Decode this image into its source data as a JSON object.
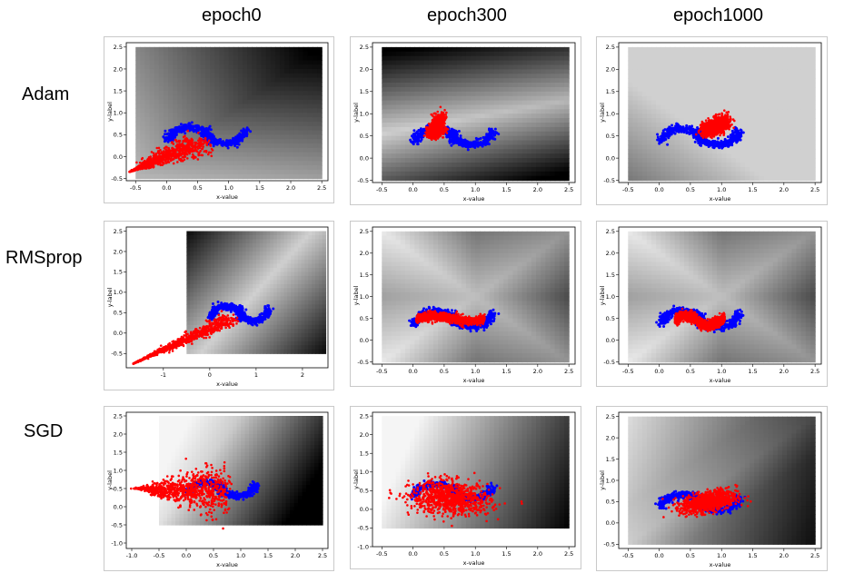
{
  "columns": [
    "epoch0",
    "epoch300",
    "epoch1000"
  ],
  "rows": [
    "Adam",
    "RMSprop",
    "SGD"
  ],
  "chart_data": [
    {
      "type": "scatter",
      "row": "Adam",
      "column": "epoch0",
      "xlabel": "x-value",
      "ylabel": "y-label",
      "xlim": [
        -0.65,
        2.6
      ],
      "ylim": [
        -0.55,
        2.6
      ],
      "xticks": [
        "-0.5",
        "0.0",
        "0.5",
        "1.0",
        "1.5",
        "2.0",
        "2.5"
      ],
      "yticks": [
        "-0.5",
        "0.0",
        "0.5",
        "1.0",
        "1.5",
        "2.0",
        "2.5"
      ],
      "background": {
        "extent": [
          -0.5,
          2.5,
          -0.5,
          2.5
        ],
        "shade": "ac_dark_tr"
      },
      "target": "moons",
      "generated": {
        "shape": "cloud",
        "cx": 0.05,
        "cy": 0.05,
        "dx": 0.45,
        "dy": 0.25,
        "spread": 0.18,
        "tail": [
          -0.6,
          -0.35
        ]
      }
    },
    {
      "type": "scatter",
      "row": "Adam",
      "column": "epoch300",
      "xlabel": "x-value",
      "ylabel": "y-label",
      "xlim": [
        -0.65,
        2.6
      ],
      "ylim": [
        -0.55,
        2.6
      ],
      "xticks": [
        "-0.5",
        "0.0",
        "0.5",
        "1.0",
        "1.5",
        "2.0",
        "2.5"
      ],
      "yticks": [
        "-0.5",
        "0.0",
        "0.5",
        "1.0",
        "1.5",
        "2.0",
        "2.5"
      ],
      "background": {
        "extent": [
          -0.5,
          2.5,
          -0.5,
          2.5
        ],
        "shade": "band_light_diag"
      },
      "target": "moons",
      "generated": {
        "shape": "spike",
        "cx": 0.3,
        "cy": 0.5,
        "dx": 0.15,
        "dy": 0.55,
        "spread": 0.05
      }
    },
    {
      "type": "scatter",
      "row": "Adam",
      "column": "epoch1000",
      "xlabel": "x-value",
      "ylabel": "y-label",
      "xlim": [
        -0.65,
        2.6
      ],
      "ylim": [
        -0.55,
        2.6
      ],
      "xticks": [
        "-0.5",
        "0.0",
        "0.5",
        "1.0",
        "1.5",
        "2.0",
        "2.5"
      ],
      "yticks": [
        "-0.5",
        "0.0",
        "0.5",
        "1.0",
        "1.5",
        "2.0",
        "2.5"
      ],
      "background": {
        "extent": [
          -0.5,
          2.5,
          -0.5,
          2.5
        ],
        "shade": "light_dark_bl"
      },
      "target": "moons",
      "generated": {
        "shape": "spike",
        "cx": 0.75,
        "cy": 0.6,
        "dx": 0.3,
        "dy": 0.35,
        "spread": 0.07
      }
    },
    {
      "type": "scatter",
      "row": "RMSprop",
      "column": "epoch0",
      "xlabel": "x-value",
      "ylabel": "y-label",
      "xlim": [
        -1.8,
        2.55
      ],
      "ylim": [
        -0.85,
        2.6
      ],
      "xticks": [
        "-1",
        "0",
        "1",
        "2"
      ],
      "yticks": [
        "-0.5",
        "0.0",
        "0.5",
        "1.0",
        "1.5",
        "2.0",
        "2.5"
      ],
      "background": {
        "extent": [
          -0.5,
          2.5,
          -0.5,
          2.5
        ],
        "shade": "diag_light"
      },
      "target": "moons",
      "generated": {
        "shape": "cloud",
        "cx": 0.1,
        "cy": 0.15,
        "dx": 0.35,
        "dy": 0.2,
        "spread": 0.12,
        "tail": [
          -1.65,
          -0.75
        ]
      }
    },
    {
      "type": "scatter",
      "row": "RMSprop",
      "column": "epoch300",
      "xlabel": "x-value",
      "ylabel": "y-label",
      "xlim": [
        -0.65,
        2.6
      ],
      "ylim": [
        -0.55,
        2.6
      ],
      "xticks": [
        "-0.5",
        "0.0",
        "0.5",
        "1.0",
        "1.5",
        "2.0",
        "2.5"
      ],
      "yticks": [
        "-0.5",
        "0.0",
        "0.5",
        "1.0",
        "1.5",
        "2.0",
        "2.5"
      ],
      "background": {
        "extent": [
          -0.5,
          2.5,
          -0.5,
          2.5
        ],
        "shade": "x_shape"
      },
      "target": "moons",
      "generated": {
        "shape": "band",
        "x0": 0.05,
        "x1": 1.15,
        "cy": 0.5,
        "spread": 0.05
      }
    },
    {
      "type": "scatter",
      "row": "RMSprop",
      "column": "epoch1000",
      "xlabel": "x-value",
      "ylabel": "y-label",
      "xlim": [
        -0.65,
        2.6
      ],
      "ylim": [
        -0.55,
        2.6
      ],
      "xticks": [
        "-0.5",
        "0.0",
        "0.5",
        "1.0",
        "1.5",
        "2.0",
        "2.5"
      ],
      "yticks": [
        "-0.5",
        "0.0",
        "0.5",
        "1.0",
        "1.5",
        "2.0",
        "2.5"
      ],
      "background": {
        "extent": [
          -0.5,
          2.5,
          -0.5,
          2.5
        ],
        "shade": "x_shape"
      },
      "target": "moons",
      "generated": {
        "shape": "band2",
        "x0": 0.25,
        "x1": 1.05,
        "cy": 0.45,
        "spread": 0.06
      }
    },
    {
      "type": "scatter",
      "row": "SGD",
      "column": "epoch0",
      "xlabel": "x-value",
      "ylabel": "y-label",
      "xlim": [
        -1.1,
        2.6
      ],
      "ylim": [
        -1.15,
        2.6
      ],
      "xticks": [
        "-1.0",
        "-0.5",
        "0.0",
        "0.5",
        "1.0",
        "1.5",
        "2.0",
        "2.5"
      ],
      "yticks": [
        "-1.0",
        "-0.5",
        "0.0",
        "0.5",
        "1.0",
        "1.5",
        "2.0",
        "2.5"
      ],
      "background": {
        "extent": [
          -0.5,
          2.5,
          -0.5,
          2.5
        ],
        "shade": "light_tl"
      },
      "target": "moons",
      "generated": {
        "shape": "fan",
        "cx": 0.05,
        "cy": 0.35,
        "spread": 0.25,
        "tail": [
          -0.9,
          0.5
        ]
      }
    },
    {
      "type": "scatter",
      "row": "SGD",
      "column": "epoch300",
      "xlabel": "x-value",
      "ylabel": "y-label",
      "xlim": [
        -0.65,
        2.6
      ],
      "ylim": [
        -1.0,
        2.6
      ],
      "xticks": [
        "-0.5",
        "0.0",
        "0.5",
        "1.0",
        "1.5",
        "2.0",
        "2.5"
      ],
      "yticks": [
        "-1.0",
        "-0.5",
        "0.0",
        "0.5",
        "1.0",
        "1.5",
        "2.0",
        "2.5"
      ],
      "background": {
        "extent": [
          -0.5,
          2.5,
          -0.5,
          2.5
        ],
        "shade": "light_tl2"
      },
      "target": "moons",
      "generated": {
        "shape": "fan2",
        "cx": 0.6,
        "cy": 0.35,
        "spread": 0.22
      }
    },
    {
      "type": "scatter",
      "row": "SGD",
      "column": "epoch1000",
      "xlabel": "x-value",
      "ylabel": "y-label",
      "xlim": [
        -0.65,
        2.6
      ],
      "ylim": [
        -0.6,
        2.6
      ],
      "xticks": [
        "-0.5",
        "0.0",
        "0.5",
        "1.0",
        "1.5",
        "2.0",
        "2.5"
      ],
      "yticks": [
        "-0.5",
        "0.0",
        "0.5",
        "1.0",
        "1.5",
        "2.0",
        "2.5"
      ],
      "background": {
        "extent": [
          -0.5,
          2.5,
          -0.5,
          2.5
        ],
        "shade": "dark_right"
      },
      "target": "moons",
      "generated": {
        "shape": "spike2",
        "cx": 0.8,
        "cy": 0.5,
        "spread": 0.12
      }
    }
  ],
  "colors": {
    "target": "#0000ff",
    "generated": "#ff0000"
  }
}
